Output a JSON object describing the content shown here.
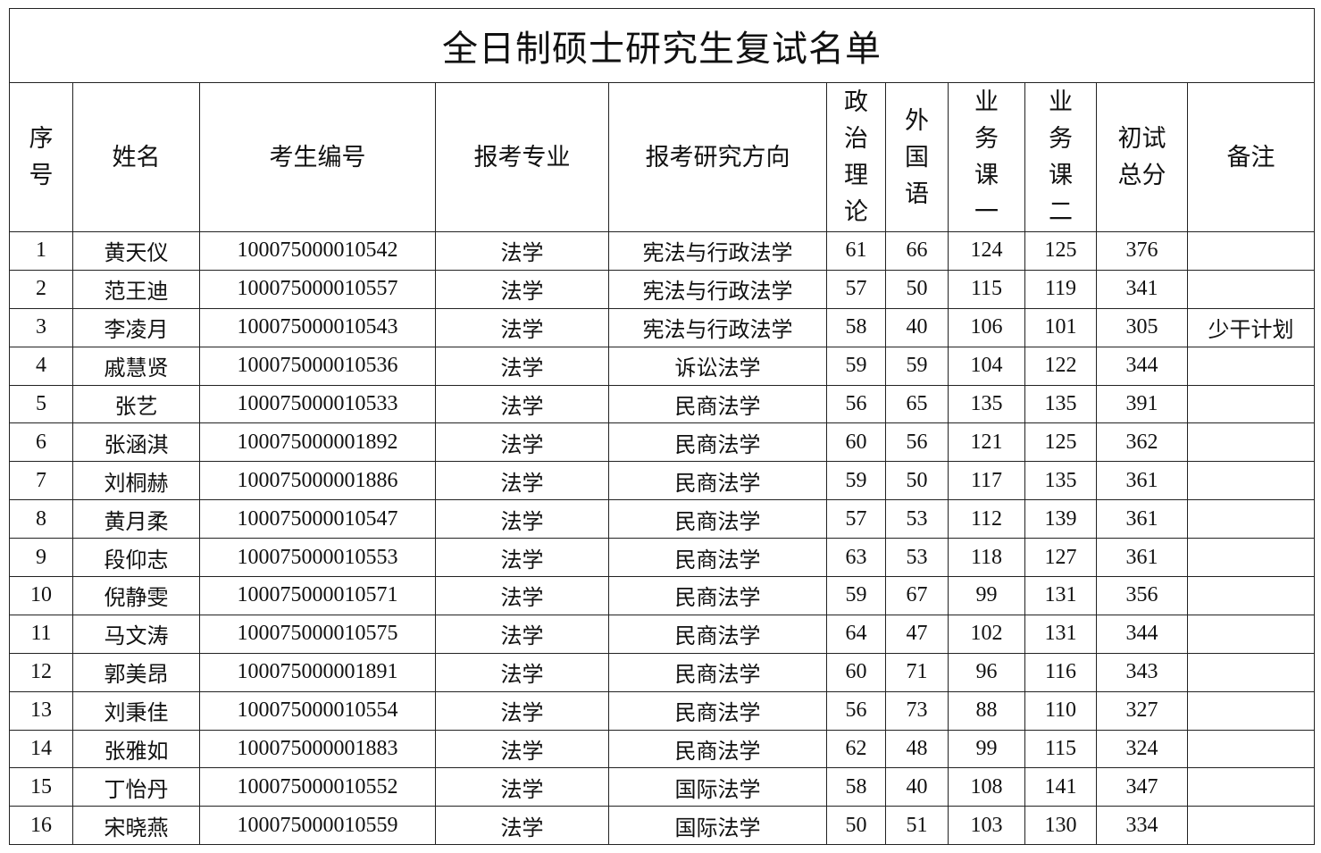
{
  "title": "全日制硕士研究生复试名单",
  "headers": [
    "序\n号",
    "姓名",
    "考生编号",
    "报考专业",
    "报考研究方向",
    "政\n治\n理\n论",
    "外\n国\n语",
    "业\n务\n课\n一",
    "业\n务\n课\n二",
    "初试\n总分",
    "备注"
  ],
  "rows": [
    [
      "1",
      "黄天仪",
      "100075000010542",
      "法学",
      "宪法与行政法学",
      "61",
      "66",
      "124",
      "125",
      "376",
      ""
    ],
    [
      "2",
      "范王迪",
      "100075000010557",
      "法学",
      "宪法与行政法学",
      "57",
      "50",
      "115",
      "119",
      "341",
      ""
    ],
    [
      "3",
      "李凌月",
      "100075000010543",
      "法学",
      "宪法与行政法学",
      "58",
      "40",
      "106",
      "101",
      "305",
      "少干计划"
    ],
    [
      "4",
      "戚慧贤",
      "100075000010536",
      "法学",
      "诉讼法学",
      "59",
      "59",
      "104",
      "122",
      "344",
      ""
    ],
    [
      "5",
      "张艺",
      "100075000010533",
      "法学",
      "民商法学",
      "56",
      "65",
      "135",
      "135",
      "391",
      ""
    ],
    [
      "6",
      "张涵淇",
      "100075000001892",
      "法学",
      "民商法学",
      "60",
      "56",
      "121",
      "125",
      "362",
      ""
    ],
    [
      "7",
      "刘桐赫",
      "100075000001886",
      "法学",
      "民商法学",
      "59",
      "50",
      "117",
      "135",
      "361",
      ""
    ],
    [
      "8",
      "黄月柔",
      "100075000010547",
      "法学",
      "民商法学",
      "57",
      "53",
      "112",
      "139",
      "361",
      ""
    ],
    [
      "9",
      "段仰志",
      "100075000010553",
      "法学",
      "民商法学",
      "63",
      "53",
      "118",
      "127",
      "361",
      ""
    ],
    [
      "10",
      "倪静雯",
      "100075000010571",
      "法学",
      "民商法学",
      "59",
      "67",
      "99",
      "131",
      "356",
      ""
    ],
    [
      "11",
      "马文涛",
      "100075000010575",
      "法学",
      "民商法学",
      "64",
      "47",
      "102",
      "131",
      "344",
      ""
    ],
    [
      "12",
      "郭美昂",
      "100075000001891",
      "法学",
      "民商法学",
      "60",
      "71",
      "96",
      "116",
      "343",
      ""
    ],
    [
      "13",
      "刘秉佳",
      "100075000010554",
      "法学",
      "民商法学",
      "56",
      "73",
      "88",
      "110",
      "327",
      ""
    ],
    [
      "14",
      "张雅如",
      "100075000001883",
      "法学",
      "民商法学",
      "62",
      "48",
      "99",
      "115",
      "324",
      ""
    ],
    [
      "15",
      "丁怡丹",
      "100075000010552",
      "法学",
      "国际法学",
      "58",
      "40",
      "108",
      "141",
      "347",
      ""
    ],
    [
      "16",
      "宋晓燕",
      "100075000010559",
      "法学",
      "国际法学",
      "50",
      "51",
      "103",
      "130",
      "334",
      ""
    ]
  ]
}
